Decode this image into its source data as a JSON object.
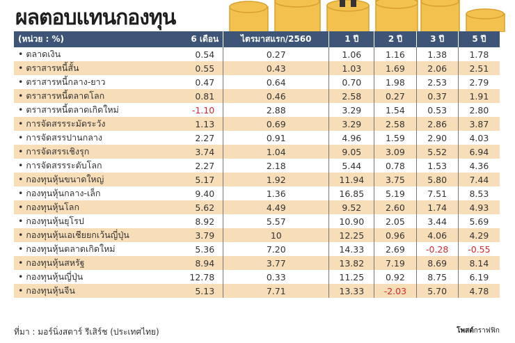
{
  "title": "ผลตอบแทนกองทุน",
  "source": "ที่มา : มอร์นิ่งสตาร์ รีเสิร์ช (ประเทศไทย)",
  "credit": {
    "bold": "โพสต์",
    "rest": "กราฟฟิก"
  },
  "colors": {
    "header": "#3e5577",
    "alt_row": "#f8deb8",
    "negative": "#d9272e"
  },
  "chart_data": {
    "type": "table",
    "headers": [
      "(หน่วย : %)",
      "6 เดือน",
      "ไตรมาสแรก/2560",
      "1 ปี",
      "2 ปี",
      "3 ปี",
      "5 ปี"
    ],
    "rows": [
      [
        "• ตลาดเงิน",
        "0.54",
        "0.27",
        "1.06",
        "1.16",
        "1.38",
        "1.78"
      ],
      [
        "• ตราสารหนี้สั้น",
        "0.55",
        "0.43",
        "1.03",
        "1.69",
        "2.06",
        "2.51"
      ],
      [
        "• ตราสารหนี้กลาง-ยาว",
        "0.47",
        "0.64",
        "0.70",
        "1.98",
        "2.53",
        "2.79"
      ],
      [
        "• ตราสารหนี้ตลาดโลก",
        "0.81",
        "0.46",
        "2.58",
        "0.27",
        "0.37",
        "1.91"
      ],
      [
        "• ตราสารหนี้ตลาดเกิดใหม่",
        "-1.10",
        "2.88",
        "3.29",
        "1.54",
        "0.53",
        "2.80"
      ],
      [
        "• การจัดสรรระมัดระวัง",
        "1.13",
        "0.69",
        "3.29",
        "2.58",
        "2.86",
        "3.87"
      ],
      [
        "• การจัดสรรปานกลาง",
        "2.27",
        "0.91",
        "4.96",
        "1.59",
        "2.90",
        "4.03"
      ],
      [
        "• การจัดสรรเชิงรุก",
        "3.74",
        "1.04",
        "9.05",
        "3.09",
        "5.52",
        "6.94"
      ],
      [
        "• การจัดสรรระดับโลก",
        "2.27",
        "2.18",
        "5.44",
        "0.78",
        "1.53",
        "4.36"
      ],
      [
        "• กองทุนหุ้นขนาดใหญ่",
        "5.17",
        "1.92",
        "11.94",
        "3.75",
        "5.80",
        "7.44"
      ],
      [
        "• กองทุนหุ้นกลาง-เล็ก",
        "9.40",
        "1.36",
        "16.85",
        "5.19",
        "7.51",
        "8.53"
      ],
      [
        "• กองทุนหุ้นโลก",
        "5.62",
        "4.49",
        "9.52",
        "2.60",
        "1.74",
        "4.93"
      ],
      [
        "• กองทุนหุ้นยุโรป",
        "8.92",
        "5.57",
        "10.90",
        "2.05",
        "3.44",
        "5.69"
      ],
      [
        "• กองทุนหุ้นเอเชียยกเว้นญี่ปุ่น",
        "3.79",
        "10",
        "12.25",
        "0.96",
        "4.06",
        "4.29"
      ],
      [
        "• กองทุนหุ้นตลาดเกิดใหม่",
        "5.36",
        "7.20",
        "14.33",
        "2.69",
        "-0.28",
        "-0.55"
      ],
      [
        "• กองทุนหุ้นสหรัฐ",
        "8.94",
        "3.77",
        "13.82",
        "7.19",
        "8.69",
        "8.14"
      ],
      [
        "• กองทุนหุ้นญี่ปุ่น",
        "12.78",
        "0.33",
        "11.25",
        "0.92",
        "8.75",
        "6.19"
      ],
      [
        "• กองทุนหุ้นจีน",
        "5.13",
        "7.71",
        "13.33",
        "-2.03",
        "5.70",
        "4.78"
      ]
    ]
  }
}
